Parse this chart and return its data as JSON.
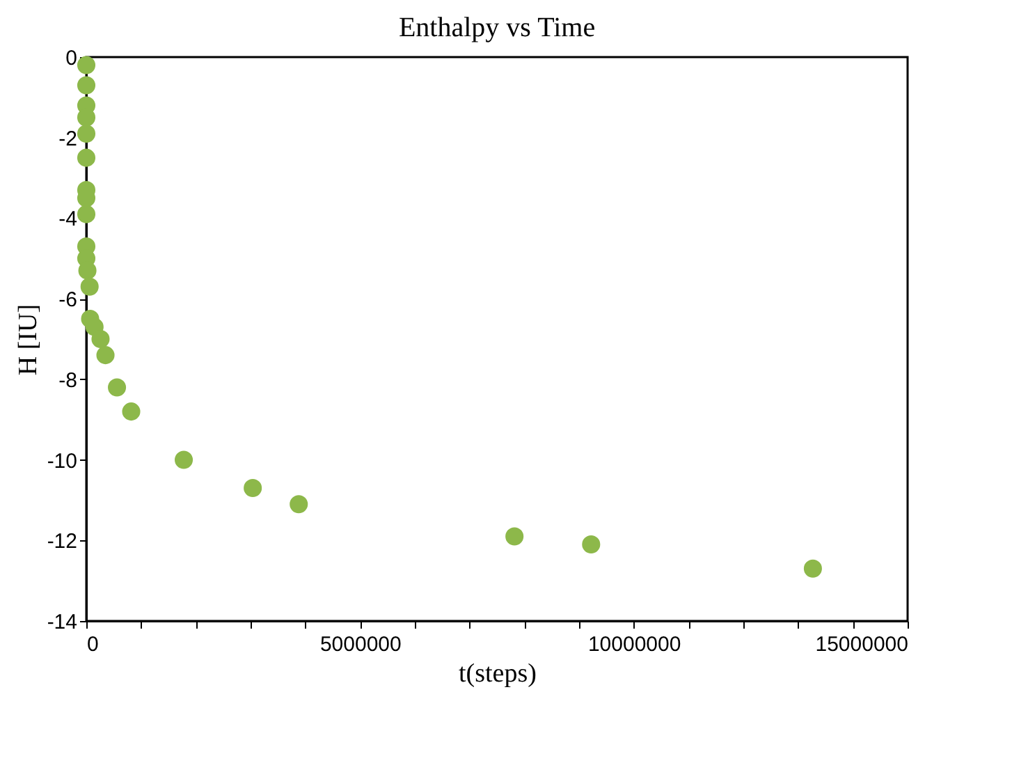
{
  "chart_data": {
    "type": "scatter",
    "title": "Enthalpy vs Time",
    "xlabel": "t(steps)",
    "ylabel": "H [IU]",
    "x": [
      0,
      0,
      0,
      0,
      0,
      0,
      0,
      0,
      0,
      0,
      0,
      20000,
      60000,
      70000,
      150000,
      260000,
      350000,
      560000,
      820000,
      1780000,
      3040000,
      3880000,
      7820000,
      9220000,
      13270000
    ],
    "series": [
      {
        "color": "#8db84a",
        "values": [
          -0.2,
          -0.7,
          -1.2,
          -1.5,
          -1.9,
          -2.5,
          -3.3,
          -3.5,
          -3.9,
          -4.7,
          -5.0,
          -5.3,
          -5.7,
          -6.5,
          -6.7,
          -7.0,
          -7.4,
          -8.2,
          -8.8,
          -10.0,
          -10.7,
          -11.1,
          -11.9,
          -12.1,
          -12.7
        ]
      }
    ],
    "xlim": [
      0,
      15000000
    ],
    "ylim": [
      -14,
      0
    ],
    "xticks": [
      0,
      {
        "value": 1000000,
        "label": null
      },
      {
        "value": 2000000,
        "label": null
      },
      {
        "value": 3000000,
        "label": null
      },
      {
        "value": 4000000,
        "label": null
      },
      5000000,
      {
        "value": 6000000,
        "label": null
      },
      {
        "value": 7000000,
        "label": null
      },
      {
        "value": 8000000,
        "label": null
      },
      {
        "value": 9000000,
        "label": null
      },
      10000000,
      {
        "value": 11000000,
        "label": null
      },
      {
        "value": 12000000,
        "label": null
      },
      {
        "value": 13000000,
        "label": null
      },
      {
        "value": 14000000,
        "label": null
      },
      15000000
    ],
    "yticks": [
      -14,
      -12,
      -10,
      -8,
      -6,
      -4,
      -2,
      0
    ],
    "grid": false
  }
}
